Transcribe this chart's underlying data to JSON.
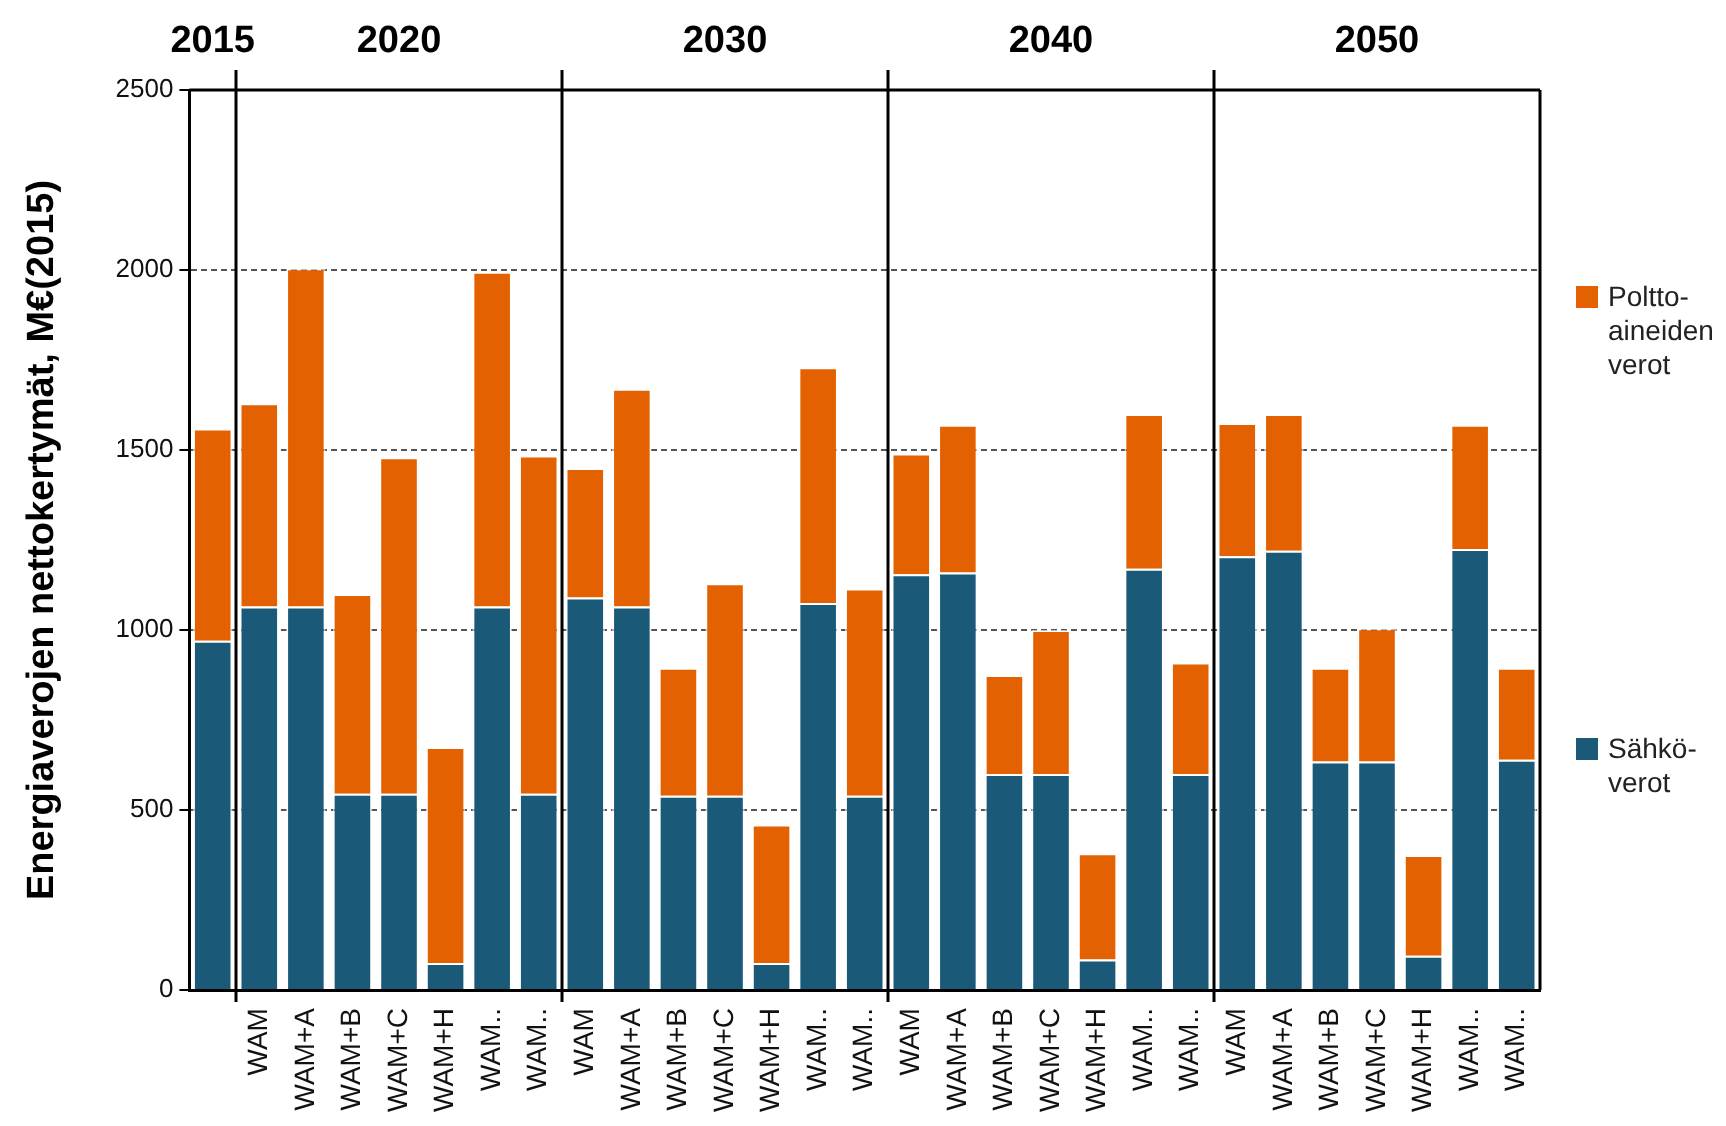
{
  "chart_data": {
    "type": "bar",
    "ylabel": "Energiaverojen nettokertymät, M€(2015)",
    "categories": [
      null,
      "WAM",
      "WAM+A",
      "WAM+B",
      "WAM+C",
      "WAM+H",
      "WAM..",
      "WAM..",
      "WAM",
      "WAM+A",
      "WAM+B",
      "WAM+C",
      "WAM+H",
      "WAM..",
      "WAM..",
      "WAM",
      "WAM+A",
      "WAM+B",
      "WAM+C",
      "WAM+H",
      "WAM..",
      "WAM..",
      "WAM",
      "WAM+A",
      "WAM+B",
      "WAM+C",
      "WAM+H",
      "WAM..",
      "WAM.."
    ],
    "stacked": true,
    "series": [
      {
        "name": "Sähkö-verot",
        "color": "#1a5a78",
        "values": [
          970,
          1065,
          1065,
          545,
          545,
          75,
          1065,
          545,
          1090,
          1065,
          540,
          540,
          75,
          1075,
          540,
          1155,
          1160,
          600,
          600,
          85,
          1170,
          600,
          1205,
          1220,
          635,
          635,
          95,
          1225,
          640
        ]
      },
      {
        "name": "Poltto-aineiden verot",
        "color": "#e36100",
        "values": [
          590,
          565,
          940,
          555,
          935,
          600,
          930,
          940,
          360,
          605,
          355,
          590,
          385,
          655,
          575,
          335,
          410,
          275,
          400,
          295,
          430,
          310,
          370,
          380,
          260,
          370,
          280,
          345,
          255
        ]
      }
    ],
    "ylim": [
      0,
      2500
    ],
    "yticks": [
      0,
      500,
      1000,
      1500,
      2000,
      2500
    ],
    "grid": "y",
    "legend": "right",
    "annotations": [
      "2015",
      "2020",
      "2030",
      "2040",
      "2050"
    ]
  }
}
